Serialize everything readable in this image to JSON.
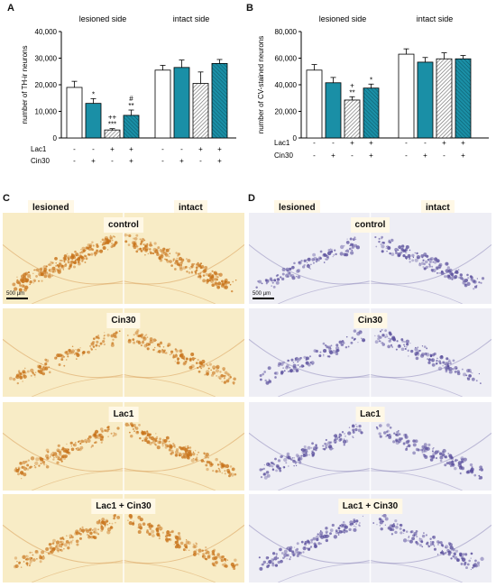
{
  "panels": {
    "A": "A",
    "B": "B",
    "C": "C",
    "D": "D"
  },
  "chart_data": [
    {
      "type": "bar",
      "panel": "A",
      "ylabel": "number of TH-ir neurons",
      "ylim": [
        0,
        40000
      ],
      "yticks": [
        "0",
        "10,000",
        "20,000",
        "30,000",
        "40,000"
      ],
      "group_labels": [
        "lesioned side",
        "intact side"
      ],
      "row_labels": [
        "Lac1",
        "Cin30"
      ],
      "conditions": [
        {
          "lac1": "-",
          "cin30": "-",
          "pattern": "white"
        },
        {
          "lac1": "-",
          "cin30": "+",
          "pattern": "teal"
        },
        {
          "lac1": "+",
          "cin30": "-",
          "pattern": "hatch"
        },
        {
          "lac1": "+",
          "cin30": "+",
          "pattern": "teal-hatch"
        }
      ],
      "groups": [
        {
          "values": [
            19000,
            13000,
            3000,
            8500
          ],
          "errors": [
            2300,
            1800,
            500,
            2000
          ],
          "annotations": [
            [],
            [
              "*"
            ],
            [
              "++",
              "***"
            ],
            [
              "#",
              "**"
            ]
          ]
        },
        {
          "values": [
            25500,
            26500,
            20500,
            28000
          ],
          "errors": [
            1800,
            2800,
            4300,
            1500
          ],
          "annotations": [
            [],
            [],
            [],
            []
          ]
        }
      ]
    },
    {
      "type": "bar",
      "panel": "B",
      "ylabel": "number of CV-stained neurons",
      "ylim": [
        0,
        80000
      ],
      "yticks": [
        "0",
        "20,000",
        "40,000",
        "60,000",
        "80,000"
      ],
      "group_labels": [
        "lesioned side",
        "intact side"
      ],
      "row_labels": [
        "Lac1",
        "Cin30"
      ],
      "conditions": [
        {
          "lac1": "-",
          "cin30": "-",
          "pattern": "white"
        },
        {
          "lac1": "-",
          "cin30": "+",
          "pattern": "teal"
        },
        {
          "lac1": "+",
          "cin30": "-",
          "pattern": "hatch"
        },
        {
          "lac1": "+",
          "cin30": "+",
          "pattern": "teal-hatch"
        }
      ],
      "groups": [
        {
          "values": [
            51000,
            41500,
            28500,
            37500
          ],
          "errors": [
            4200,
            4000,
            2500,
            3000
          ],
          "annotations": [
            [],
            [],
            [
              "+",
              "**"
            ],
            [
              "*"
            ]
          ]
        },
        {
          "values": [
            63000,
            57000,
            59500,
            59500
          ],
          "errors": [
            4000,
            3500,
            4500,
            2500
          ],
          "annotations": [
            [],
            [],
            [],
            []
          ]
        }
      ]
    }
  ],
  "histology": {
    "C": {
      "side_labels": [
        "lesioned",
        "intact"
      ],
      "conditions": [
        "control",
        "Cin30",
        "Lac1",
        "Lac1 + Cin30"
      ],
      "scale_bar": "500 µm",
      "stain_color": "#c8731a",
      "background": "#f8ecc6"
    },
    "D": {
      "side_labels": [
        "lesioned",
        "intact"
      ],
      "conditions": [
        "control",
        "Cin30",
        "Lac1",
        "Lac1 + Cin30"
      ],
      "scale_bar": "500 µm",
      "stain_color": "#5a4f9c",
      "background": "#eeeef5"
    }
  },
  "colors": {
    "teal": "#1a8fa6",
    "hatch": "#7a7a7a",
    "white": "#ffffff"
  }
}
